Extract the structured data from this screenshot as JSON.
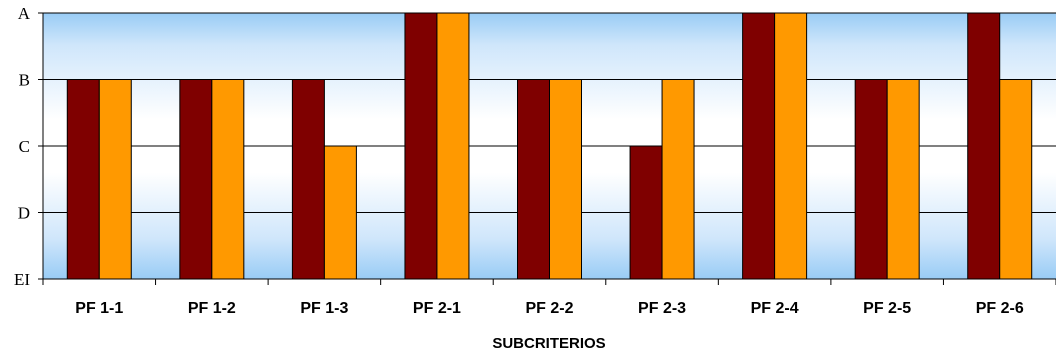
{
  "chart_data": {
    "type": "bar",
    "title": "",
    "xlabel": "SUBCRITERIOS",
    "ylabel": "",
    "y_levels": [
      "EI",
      "D",
      "C",
      "B",
      "A"
    ],
    "categories": [
      "PF 1-1",
      "PF 1-2",
      "PF 1-3",
      "PF 2-1",
      "PF 2-2",
      "PF 2-3",
      "PF 2-4",
      "PF 2-5",
      "PF 2-6"
    ],
    "series": [
      {
        "color": "#7f0000",
        "values": [
          "B",
          "B",
          "B",
          "A",
          "B",
          "C",
          "A",
          "B",
          "A"
        ]
      },
      {
        "color": "#ff9900",
        "values": [
          "B",
          "B",
          "C",
          "A",
          "B",
          "B",
          "A",
          "B",
          "B"
        ]
      }
    ],
    "grid": true,
    "legend": "none",
    "background": "gradient-blue"
  }
}
